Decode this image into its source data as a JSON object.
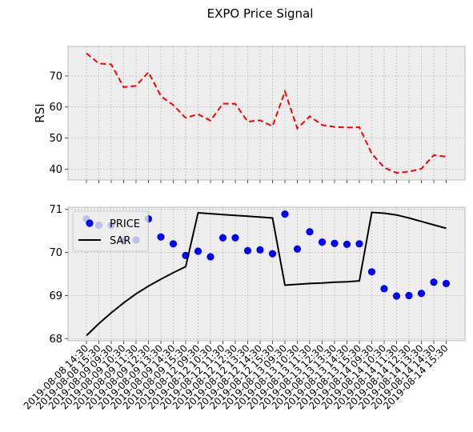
{
  "chart_data": {
    "title": "EXPO Price Signal",
    "x_tick_labels": [
      "2019-08-08 14:30",
      "2019-08-08 15:30",
      "2019-08-09 09:30",
      "2019-08-09 10:30",
      "2019-08-09 11:30",
      "2019-08-09 12:30",
      "2019-08-09 13:30",
      "2019-08-09 14:30",
      "2019-08-09 15:30",
      "2019-08-12 09:30",
      "2019-08-12 10:30",
      "2019-08-12 11:30",
      "2019-08-12 12:30",
      "2019-08-12 13:30",
      "2019-08-12 14:30",
      "2019-08-12 15:30",
      "2019-08-13 09:30",
      "2019-08-13 10:30",
      "2019-08-13 11:30",
      "2019-08-13 12:30",
      "2019-08-13 13:30",
      "2019-08-13 14:30",
      "2019-08-13 15:30",
      "2019-08-14 09:30",
      "2019-08-14 10:30",
      "2019-08-14 11:30",
      "2019-08-14 12:30",
      "2019-08-14 13:30",
      "2019-08-14 14:30",
      "2019-08-14 15:30"
    ],
    "panels": [
      {
        "type": "line",
        "ylabel": "RSI",
        "ylim": [
          36.5,
          79.5
        ],
        "yticks": [
          40,
          50,
          60,
          70
        ],
        "grid": true,
        "series": [
          {
            "color": "#ff0000",
            "style": "dashed",
            "values": [
              77.3,
              74.0,
              73.7,
              66.4,
              66.8,
              71.2,
              63.5,
              60.6,
              56.5,
              57.7,
              55.6,
              61.1,
              61.0,
              55.3,
              55.7,
              53.8,
              65.0,
              53.1,
              57.0,
              54.2,
              53.6,
              53.4,
              53.5,
              45.0,
              40.5,
              38.8,
              39.2,
              40.1,
              44.5,
              44.0
            ]
          }
        ]
      },
      {
        "type": "line+scatter",
        "ylim": [
          67.95,
          71.05
        ],
        "yticks": [
          68,
          69,
          70,
          71
        ],
        "grid": true,
        "legend_position": "top-left",
        "series": [
          {
            "name": "PRICE",
            "type": "scatter",
            "color": "#0000ff",
            "values": [
              70.78,
              70.63,
              70.63,
              70.27,
              70.29,
              70.78,
              70.36,
              70.2,
              69.93,
              70.03,
              69.9,
              70.34,
              70.34,
              70.04,
              70.06,
              69.97,
              70.89,
              70.08,
              70.48,
              70.24,
              70.21,
              70.19,
              70.2,
              69.55,
              69.16,
              68.99,
              69.0,
              69.05,
              69.31,
              69.28
            ]
          },
          {
            "name": "SAR",
            "type": "line",
            "color": "#000000",
            "values": [
              68.07,
              68.35,
              68.6,
              68.83,
              69.04,
              69.22,
              69.38,
              69.53,
              69.67,
              70.92,
              70.9,
              70.88,
              70.86,
              70.84,
              70.82,
              70.8,
              69.24,
              69.26,
              69.28,
              69.29,
              69.31,
              69.32,
              69.34,
              70.93,
              70.91,
              70.87,
              70.8,
              70.72,
              70.64,
              70.56
            ]
          }
        ]
      }
    ]
  }
}
